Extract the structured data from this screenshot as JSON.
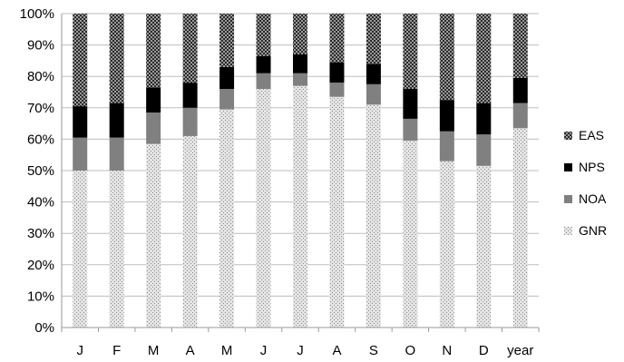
{
  "chart_data": {
    "type": "bar",
    "stacked": true,
    "normalized_percent": true,
    "categories": [
      "J",
      "F",
      "M",
      "A",
      "M",
      "J",
      "J",
      "A",
      "S",
      "O",
      "N",
      "D",
      "year"
    ],
    "y_ticks": [
      "0%",
      "10%",
      "20%",
      "30%",
      "40%",
      "50%",
      "60%",
      "70%",
      "80%",
      "90%",
      "100%"
    ],
    "ylim": [
      0,
      100
    ],
    "grid": true,
    "legend_position": "right",
    "series": [
      {
        "name": "GNR",
        "color": "#c8c8c8",
        "pattern": "light-dots",
        "values": [
          50,
          50,
          58.5,
          61,
          69.5,
          76,
          77,
          73.5,
          71,
          59.5,
          53,
          51.5,
          63.5
        ]
      },
      {
        "name": "NOA",
        "color": "#808080",
        "pattern": "solid",
        "values": [
          10.5,
          10.5,
          10,
          9,
          6.5,
          5,
          4,
          4.5,
          6.5,
          7,
          9.5,
          10,
          8
        ]
      },
      {
        "name": "NPS",
        "color": "#000000",
        "pattern": "solid",
        "values": [
          10,
          11,
          8,
          8,
          7,
          5.5,
          6,
          6.5,
          6.5,
          9.5,
          10,
          10,
          8
        ]
      },
      {
        "name": "EAS",
        "color": "#555555",
        "pattern": "dark-checker",
        "values": [
          29.5,
          28.5,
          23.5,
          22,
          17,
          13.5,
          13,
          15.5,
          16,
          24,
          27.5,
          28.5,
          20.5
        ]
      }
    ]
  }
}
